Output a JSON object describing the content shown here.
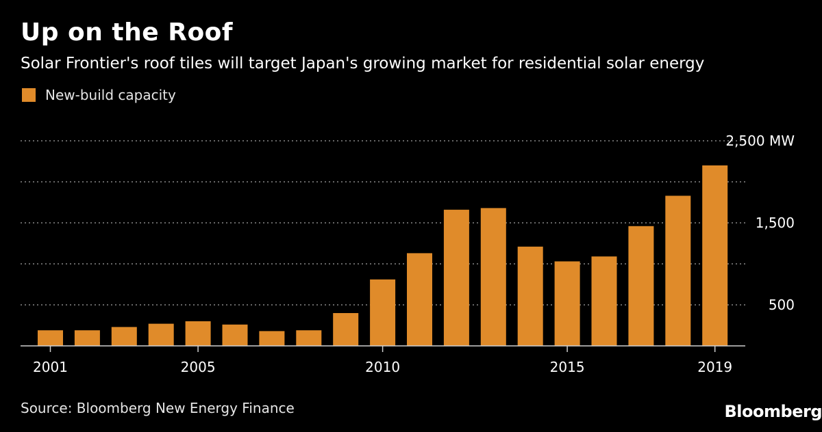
{
  "title": "Up on the Roof",
  "subtitle": "Solar Frontier's roof tiles will target Japan's growing market for residential solar energy",
  "source": "Source: Bloomberg New Energy Finance",
  "brand": "Bloomberg",
  "colors": {
    "background": "#000000",
    "bar": "#e08b2a",
    "grid": "#8a8a8a",
    "axis": "#d0d0d0",
    "text": "#ffffff"
  },
  "chart_data": {
    "type": "bar",
    "title": "Up on the Roof",
    "subtitle": "Solar Frontier's roof tiles will target Japan's growing market for residential solar energy",
    "legend": {
      "placement": "top-left",
      "entries": [
        "New-build capacity"
      ]
    },
    "grid": true,
    "categories": [
      "2001",
      "2002",
      "2003",
      "2004",
      "2005",
      "2006",
      "2007",
      "2008",
      "2009",
      "2010",
      "2011",
      "2012",
      "2013",
      "2014",
      "2015",
      "2016",
      "2017",
      "2018",
      "2019"
    ],
    "x_tick_labels": [
      "2001",
      "2005",
      "2010",
      "2015",
      "2019"
    ],
    "series": [
      {
        "name": "New-build capacity",
        "values": [
          190,
          190,
          230,
          270,
          300,
          260,
          180,
          190,
          400,
          810,
          1130,
          1660,
          1680,
          1210,
          1030,
          1090,
          1460,
          1830,
          2200
        ]
      }
    ],
    "y_tick_labels": [
      "2,500 MW",
      "1,500",
      "500"
    ],
    "y_ticks": [
      2500,
      1500,
      500
    ],
    "y_gridlines": [
      0,
      500,
      1000,
      1500,
      2000,
      2500
    ],
    "ylim": [
      0,
      2500
    ],
    "ylabel": "",
    "xlabel": ""
  }
}
